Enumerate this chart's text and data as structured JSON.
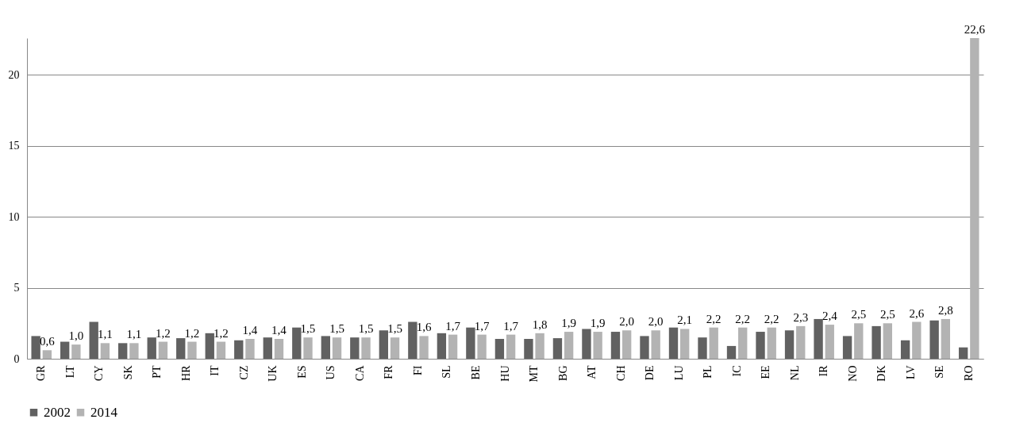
{
  "chart_data": {
    "type": "bar",
    "categories": [
      "GR",
      "LT",
      "CY",
      "SK",
      "PT",
      "HR",
      "IT",
      "CZ",
      "UK",
      "ES",
      "US",
      "CA",
      "FR",
      "FI",
      "SL",
      "BE",
      "HU",
      "MT",
      "BG",
      "AT",
      "CH",
      "DE",
      "LU",
      "PL",
      "IC",
      "EE",
      "NL",
      "IR",
      "NO",
      "DK",
      "LV",
      "SE",
      "RO"
    ],
    "series": [
      {
        "name": "2002",
        "color": "#616161",
        "values": [
          1.6,
          1.2,
          2.6,
          1.1,
          1.5,
          1.45,
          1.8,
          1.3,
          1.5,
          2.2,
          1.6,
          1.5,
          2.0,
          2.6,
          1.8,
          2.2,
          1.4,
          1.4,
          1.45,
          2.1,
          1.9,
          1.6,
          2.2,
          1.5,
          0.9,
          1.9,
          2.0,
          2.8,
          1.6,
          2.3,
          1.3,
          2.7,
          0.8
        ]
      },
      {
        "name": "2014",
        "color": "#b3b3b3",
        "values": [
          0.6,
          1.0,
          1.1,
          1.1,
          1.2,
          1.2,
          1.2,
          1.4,
          1.4,
          1.5,
          1.5,
          1.5,
          1.5,
          1.6,
          1.7,
          1.7,
          1.7,
          1.8,
          1.9,
          1.9,
          2.0,
          2.0,
          2.1,
          2.2,
          2.2,
          2.2,
          2.3,
          2.4,
          2.5,
          2.5,
          2.6,
          2.8,
          22.6
        ],
        "value_labels": [
          "0,6",
          "1,0",
          "1,1",
          "1,1",
          "1,2",
          "1,2",
          "1,2",
          "1,4",
          "1,4",
          "1,5",
          "1,5",
          "1,5",
          "1,5",
          "1,6",
          "1,7",
          "1,7",
          "1,7",
          "1,8",
          "1,9",
          "1,9",
          "2,0",
          "2,0",
          "2,1",
          "2,2",
          "2,2",
          "2,2",
          "2,3",
          "2,4",
          "2,5",
          "2,5",
          "2,6",
          "2,8",
          "22,6"
        ]
      }
    ],
    "ylim": [
      0,
      22.6
    ],
    "yticks": [
      0,
      5,
      10,
      15,
      20
    ],
    "grid": "y",
    "legend": "bottom"
  }
}
